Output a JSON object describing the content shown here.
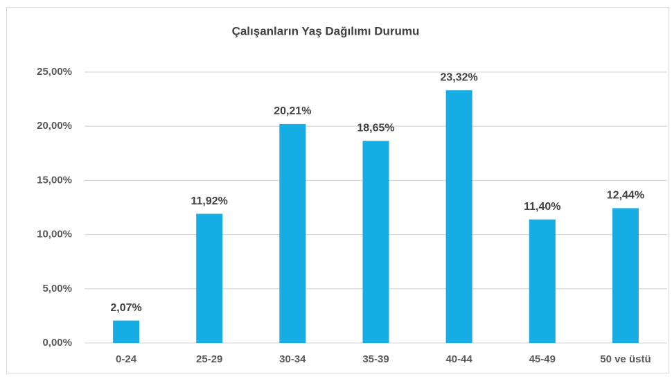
{
  "chart_data": {
    "type": "bar",
    "title": "Çalışanların Yaş Dağılımı Durumu",
    "categories": [
      "0-24",
      "25-29",
      "30-34",
      "35-39",
      "40-44",
      "45-49",
      "50 ve üstü"
    ],
    "values": [
      2.07,
      11.92,
      20.21,
      18.65,
      23.32,
      11.4,
      12.44
    ],
    "value_labels": [
      "2,07%",
      "11,92%",
      "20,21%",
      "18,65%",
      "23,32%",
      "11,40%",
      "12,44%"
    ],
    "color": "#15ade3",
    "ylim": [
      0,
      25
    ],
    "yticks": [
      {
        "value": 0,
        "label": "0,00%"
      },
      {
        "value": 5,
        "label": "5,00%"
      },
      {
        "value": 10,
        "label": "10,00%"
      },
      {
        "value": 15,
        "label": "15,00%"
      },
      {
        "value": 20,
        "label": "20,00%"
      },
      {
        "value": 25,
        "label": "25,00%"
      }
    ],
    "grid": true
  }
}
